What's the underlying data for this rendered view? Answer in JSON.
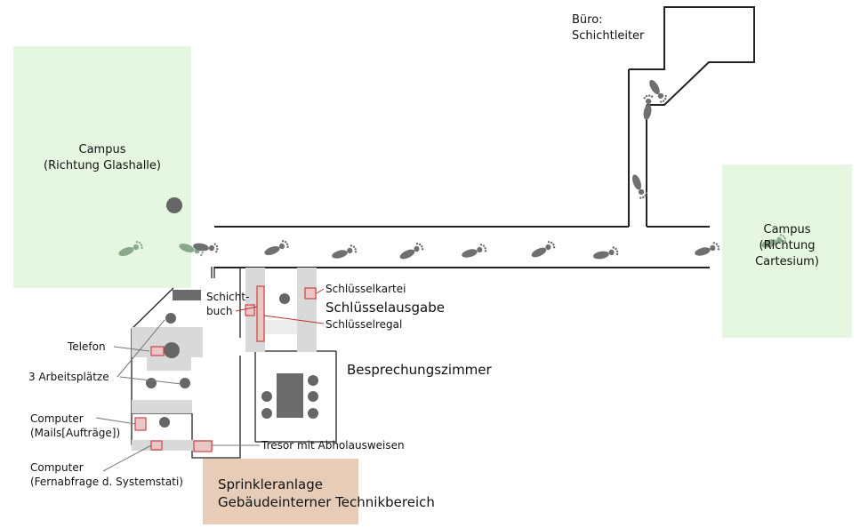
{
  "colors": {
    "campus_zone": "#e6f7e1",
    "sprinkler_zone": "#e7cdb8",
    "wall": "#222222",
    "highlight": "#cc4444"
  },
  "zones": {
    "campus_west": {
      "line1": "Campus",
      "line2": "(Richtung Glashalle)"
    },
    "campus_east": {
      "line1": "Campus",
      "line2": "(Richtung",
      "line3": "Cartesium)"
    },
    "sprinkler": {
      "line1": "Sprinkleranlage",
      "line2": "Gebäudeinterner Technikbereich"
    }
  },
  "rooms": {
    "buero_line1": "Büro:",
    "buero_line2": "Schichtleiter",
    "besprechung": "Besprechungszimmer",
    "schluesselausgabe": "Schlüsselausgabe"
  },
  "labels": {
    "schichtbuch_line1": "Schicht-",
    "schichtbuch_line2": "buch",
    "schluesselkartei": "Schlüsselkartei",
    "schluesselregal": "Schlüsselregal",
    "telefon": "Telefon",
    "arbeitsplaetze": "3 Arbeitsplätze",
    "computer1_line1": "Computer",
    "computer1_line2": "(Mails[Aufträge])",
    "computer2_line1": "Computer",
    "computer2_line2": "(Fernabfrage d. Systemstati)",
    "tresor": "Tresor mit Abholausweisen"
  },
  "icons": [
    "footprint-icon",
    "telephone-icon",
    "seat-icon",
    "table-icon"
  ]
}
